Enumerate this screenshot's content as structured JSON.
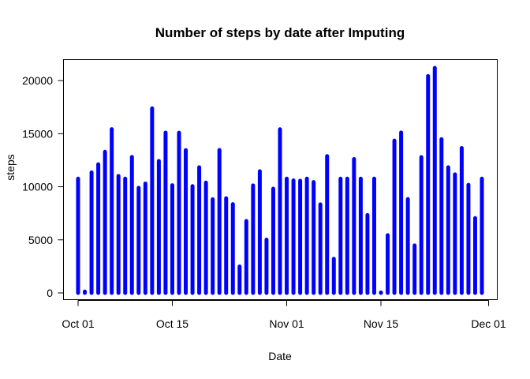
{
  "chart_data": {
    "type": "bar",
    "title": "Number of steps by date after Imputing",
    "xlabel": "Date",
    "ylabel": "steps",
    "bar_color": "#0000ff",
    "xlim": [
      "2012-10-01",
      "2012-11-30"
    ],
    "ylim": [
      0,
      21194
    ],
    "x_ticks": [
      {
        "date": "2012-10-01",
        "label": "Oct 01"
      },
      {
        "date": "2012-10-15",
        "label": "Oct 15"
      },
      {
        "date": "2012-11-01",
        "label": "Nov 01"
      },
      {
        "date": "2012-11-15",
        "label": "Nov 15"
      },
      {
        "date": "2012-12-01",
        "label": "Dec 01"
      }
    ],
    "y_ticks": [
      {
        "value": 0,
        "label": "0"
      },
      {
        "value": 5000,
        "label": "5000"
      },
      {
        "value": 10000,
        "label": "10000"
      },
      {
        "value": 15000,
        "label": "15000"
      },
      {
        "value": 20000,
        "label": "20000"
      }
    ],
    "x": [
      "2012-10-01",
      "2012-10-02",
      "2012-10-03",
      "2012-10-04",
      "2012-10-05",
      "2012-10-06",
      "2012-10-07",
      "2012-10-08",
      "2012-10-09",
      "2012-10-10",
      "2012-10-11",
      "2012-10-12",
      "2012-10-13",
      "2012-10-14",
      "2012-10-15",
      "2012-10-16",
      "2012-10-17",
      "2012-10-18",
      "2012-10-19",
      "2012-10-20",
      "2012-10-21",
      "2012-10-22",
      "2012-10-23",
      "2012-10-24",
      "2012-10-25",
      "2012-10-26",
      "2012-10-27",
      "2012-10-28",
      "2012-10-29",
      "2012-10-30",
      "2012-10-31",
      "2012-11-01",
      "2012-11-02",
      "2012-11-03",
      "2012-11-04",
      "2012-11-05",
      "2012-11-06",
      "2012-11-07",
      "2012-11-08",
      "2012-11-09",
      "2012-11-10",
      "2012-11-11",
      "2012-11-12",
      "2012-11-13",
      "2012-11-14",
      "2012-11-15",
      "2012-11-16",
      "2012-11-17",
      "2012-11-18",
      "2012-11-19",
      "2012-11-20",
      "2012-11-21",
      "2012-11-22",
      "2012-11-23",
      "2012-11-24",
      "2012-11-25",
      "2012-11-26",
      "2012-11-27",
      "2012-11-28",
      "2012-11-29",
      "2012-11-30"
    ],
    "values": [
      10766,
      126,
      11352,
      12116,
      13294,
      15420,
      11015,
      10766,
      12811,
      9900,
      10304,
      17382,
      12426,
      15098,
      10139,
      15084,
      13452,
      10056,
      11829,
      10395,
      8821,
      13460,
      8918,
      8355,
      2492,
      6778,
      10119,
      11458,
      5018,
      9819,
      15414,
      10766,
      10600,
      10571,
      10766,
      10439,
      8334,
      12883,
      3219,
      10766,
      10766,
      12608,
      10765,
      7336,
      10766,
      41,
      5441,
      14339,
      15110,
      8841,
      4472,
      12787,
      20427,
      21194,
      14478,
      11834,
      11162,
      13646,
      10183,
      7047,
      10766
    ]
  }
}
